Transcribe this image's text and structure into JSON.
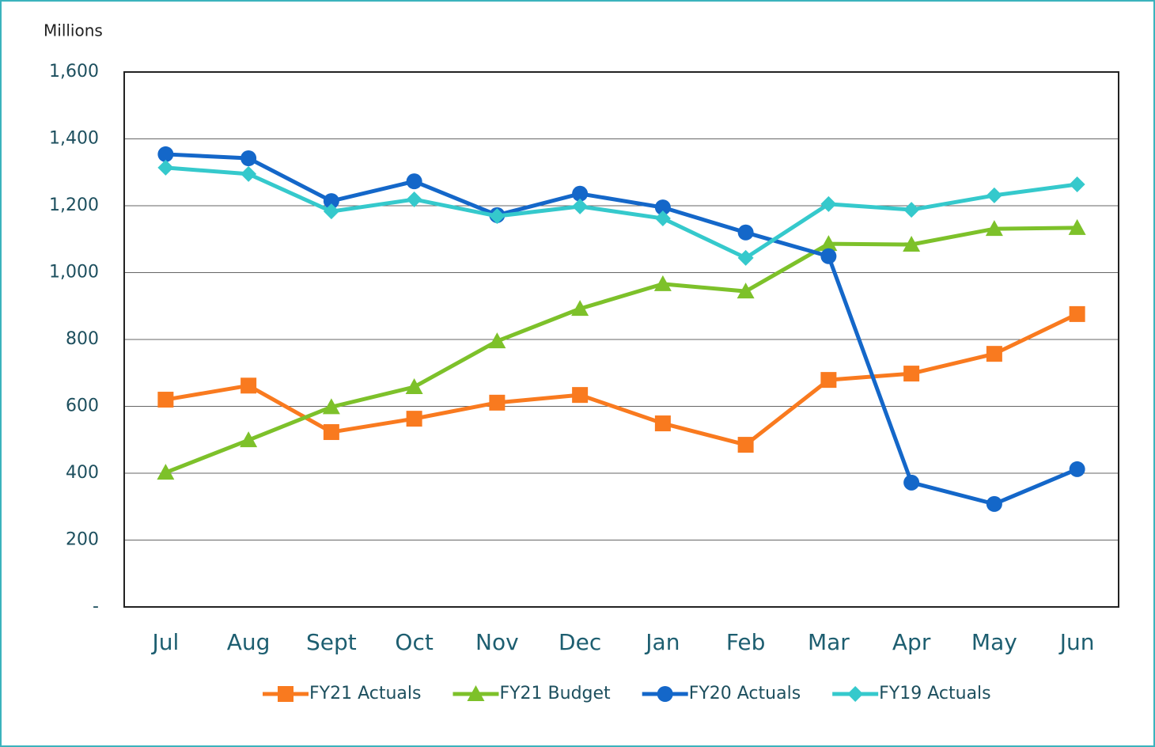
{
  "chart_data": {
    "type": "line",
    "y_label": "Millions",
    "categories": [
      "Jul",
      "Aug",
      "Sept",
      "Oct",
      "Nov",
      "Dec",
      "Jan",
      "Feb",
      "Mar",
      "Apr",
      "May",
      "Jun"
    ],
    "series": [
      {
        "name": "FY21 Actuals",
        "color": "#f97a1f",
        "marker": "square",
        "values": [
          620,
          662,
          523,
          563,
          611,
          634,
          549,
          485,
          679,
          698,
          757,
          876
        ]
      },
      {
        "name": "FY21 Budget",
        "color": "#7dc12a",
        "marker": "triangle",
        "values": [
          402,
          499,
          598,
          658,
          795,
          892,
          966,
          944,
          1086,
          1084,
          1131,
          1134
        ]
      },
      {
        "name": "FY20 Actuals",
        "color": "#1467c9",
        "marker": "circle",
        "values": [
          1354,
          1342,
          1214,
          1273,
          1172,
          1236,
          1195,
          1120,
          1049,
          372,
          308,
          412
        ]
      },
      {
        "name": "FY19 Actuals",
        "color": "#35c9cc",
        "marker": "diamond",
        "values": [
          1314,
          1295,
          1183,
          1219,
          1169,
          1198,
          1162,
          1044,
          1205,
          1188,
          1231,
          1264
        ]
      }
    ],
    "ylim": [
      0,
      1600
    ],
    "yticks": [
      {
        "value": 0,
        "label": "-"
      },
      200,
      400,
      600,
      800,
      {
        "value": 1000,
        "label": "1,000"
      },
      {
        "value": 1200,
        "label": "1,200"
      },
      {
        "value": 1400,
        "label": "1,400"
      },
      {
        "value": 1600,
        "label": "1,600"
      }
    ],
    "grid": true,
    "legend": "bottom"
  }
}
